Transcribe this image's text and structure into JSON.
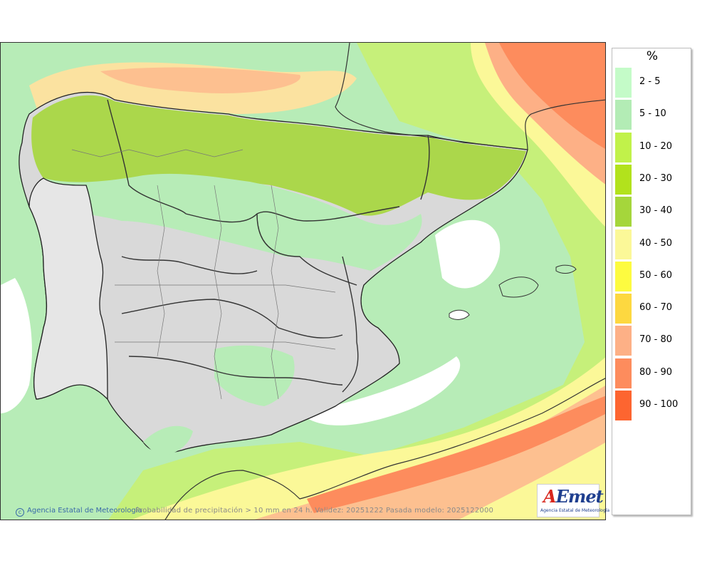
{
  "map": {
    "credit": "Agencia Estatal de Meteorología",
    "caption": "Probabilidad de precipitación > 10 mm en 24 h. Validez: 20251222 Pasada modelo: 2025122000",
    "logo_text": "AEmet",
    "logo_subtitle": "Agencia Estatal de Meteorología"
  },
  "legend": {
    "unit": "%",
    "items": [
      {
        "label": "2 - 5",
        "color": "#c4fbc8"
      },
      {
        "label": "5 - 10",
        "color": "#b3ecb5"
      },
      {
        "label": "10 - 20",
        "color": "#c1f24a"
      },
      {
        "label": "20 - 30",
        "color": "#b2e21c"
      },
      {
        "label": "30 - 40",
        "color": "#a5d63b"
      },
      {
        "label": "40 - 50",
        "color": "#fbf898"
      },
      {
        "label": "50 - 60",
        "color": "#fdfb40"
      },
      {
        "label": "60 - 70",
        "color": "#fdd840"
      },
      {
        "label": "70 - 80",
        "color": "#fdb086"
      },
      {
        "label": "80 - 90",
        "color": "#fd8c5d"
      },
      {
        "label": "90 - 100",
        "color": "#fd6530"
      }
    ]
  }
}
